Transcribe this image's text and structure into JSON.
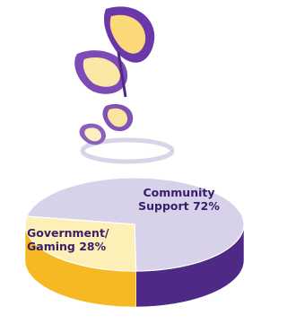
{
  "chart_data": {
    "type": "pie",
    "categories": [
      "Community Support",
      "Government/ Gaming"
    ],
    "values": [
      72,
      28
    ],
    "value_labels": [
      "72%",
      "28%"
    ],
    "colors": [
      "#d7d1ea",
      "#fdf0b6"
    ],
    "side_colors": [
      "#4e2a86",
      "#f6b823"
    ]
  }
}
